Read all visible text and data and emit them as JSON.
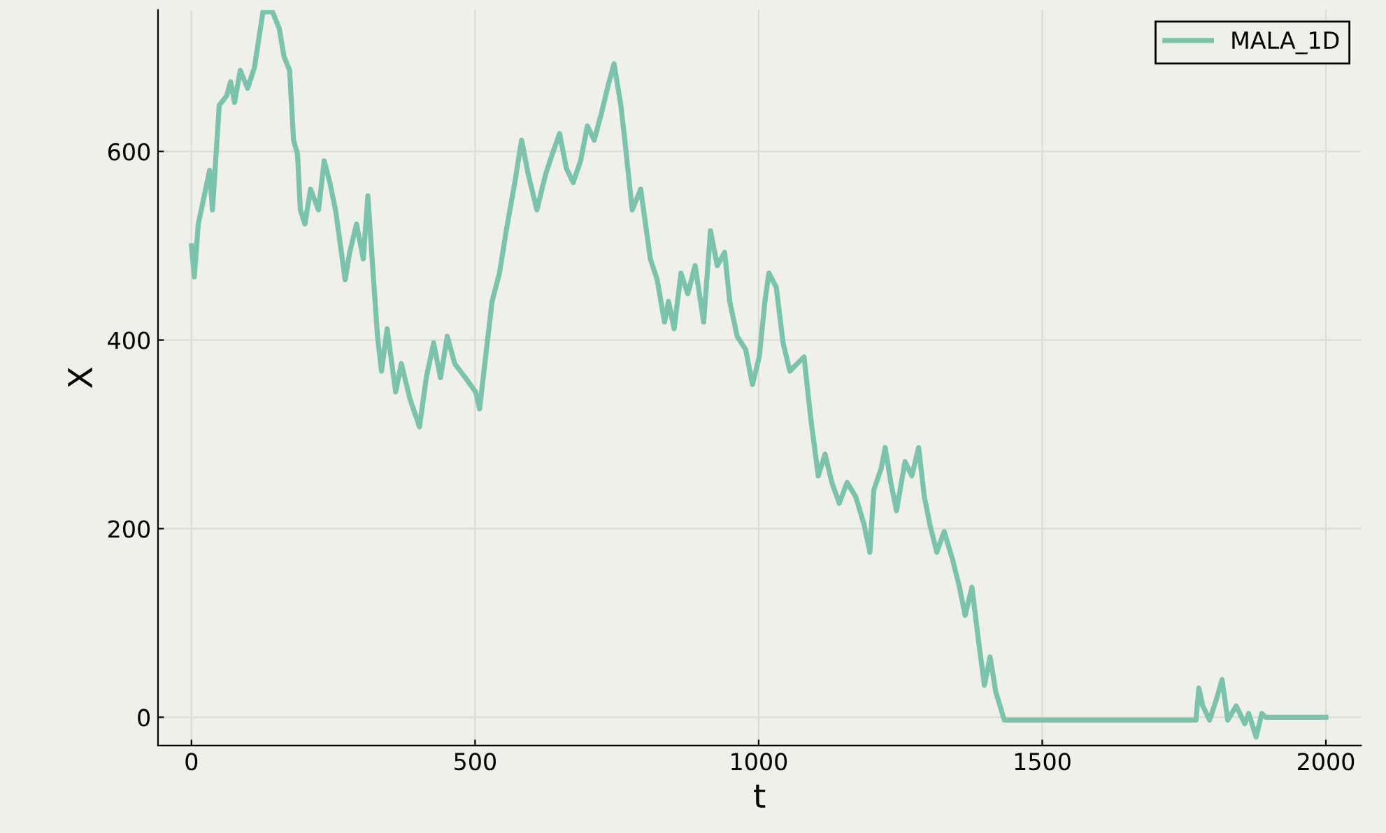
{
  "chart_data": {
    "type": "line",
    "xlabel": "t",
    "ylabel": "X",
    "xlim": [
      -59,
      2062
    ],
    "ylim": [
      -30,
      750
    ],
    "xticks": [
      0,
      500,
      1000,
      1500,
      2000
    ],
    "yticks": [
      0,
      200,
      400,
      600
    ],
    "grid": true,
    "legend": "top right",
    "line_style": "solid",
    "series": [
      {
        "name": "MALA_1D",
        "color": "#7bc3ad",
        "x": [
          0,
          5,
          12,
          25,
          32,
          37,
          49,
          62,
          69,
          76,
          86,
          99,
          111,
          126,
          143,
          155,
          163,
          173,
          180,
          187,
          192,
          200,
          210,
          224,
          234,
          244,
          254,
          271,
          279,
          291,
          303,
          311,
          321,
          328,
          335,
          345,
          360,
          370,
          385,
          402,
          414,
          427,
          439,
          451,
          464,
          483,
          501,
          508,
          520,
          530,
          543,
          555,
          570,
          582,
          594,
          609,
          624,
          636,
          649,
          661,
          673,
          686,
          698,
          710,
          723,
          735,
          745,
          757,
          764,
          777,
          792,
          809,
          821,
          834,
          841,
          851,
          863,
          875,
          888,
          903,
          915,
          927,
          940,
          949,
          962,
          977,
          989,
          1001,
          1011,
          1018,
          1031,
          1043,
          1055,
          1068,
          1080,
          1088,
          1092,
          1105,
          1117,
          1129,
          1142,
          1156,
          1171,
          1186,
          1196,
          1203,
          1216,
          1223,
          1233,
          1243,
          1258,
          1270,
          1282,
          1292,
          1302,
          1314,
          1327,
          1342,
          1354,
          1364,
          1376,
          1388,
          1398,
          1408,
          1418,
          1433,
          1771,
          1776,
          1783,
          1795,
          1807,
          1817,
          1827,
          1842,
          1857,
          1864,
          1877,
          1887,
          1894,
          2000
        ],
        "values": [
          500,
          467,
          523,
          560,
          580,
          538,
          649,
          659,
          674,
          652,
          686,
          667,
          689,
          748,
          748,
          730,
          701,
          686,
          612,
          597,
          538,
          523,
          560,
          538,
          590,
          567,
          538,
          464,
          493,
          523,
          486,
          553,
          464,
          404,
          367,
          412,
          345,
          375,
          338,
          308,
          360,
          397,
          360,
          404,
          375,
          360,
          345,
          327,
          390,
          441,
          471,
          516,
          567,
          612,
          575,
          538,
          575,
          597,
          619,
          582,
          567,
          590,
          627,
          612,
          641,
          671,
          693,
          649,
          612,
          538,
          560,
          486,
          464,
          419,
          441,
          412,
          471,
          449,
          479,
          419,
          516,
          479,
          493,
          441,
          404,
          390,
          353,
          382,
          441,
          471,
          456,
          397,
          367,
          375,
          382,
          338,
          316,
          256,
          279,
          249,
          227,
          249,
          234,
          204,
          175,
          241,
          264,
          286,
          249,
          219,
          271,
          256,
          286,
          234,
          204,
          175,
          197,
          167,
          138,
          108,
          138,
          79,
          34,
          64,
          27,
          -3,
          -3,
          31,
          12,
          -3,
          19,
          40,
          -3,
          12,
          -7,
          4,
          -21,
          4,
          0,
          0
        ]
      }
    ]
  }
}
